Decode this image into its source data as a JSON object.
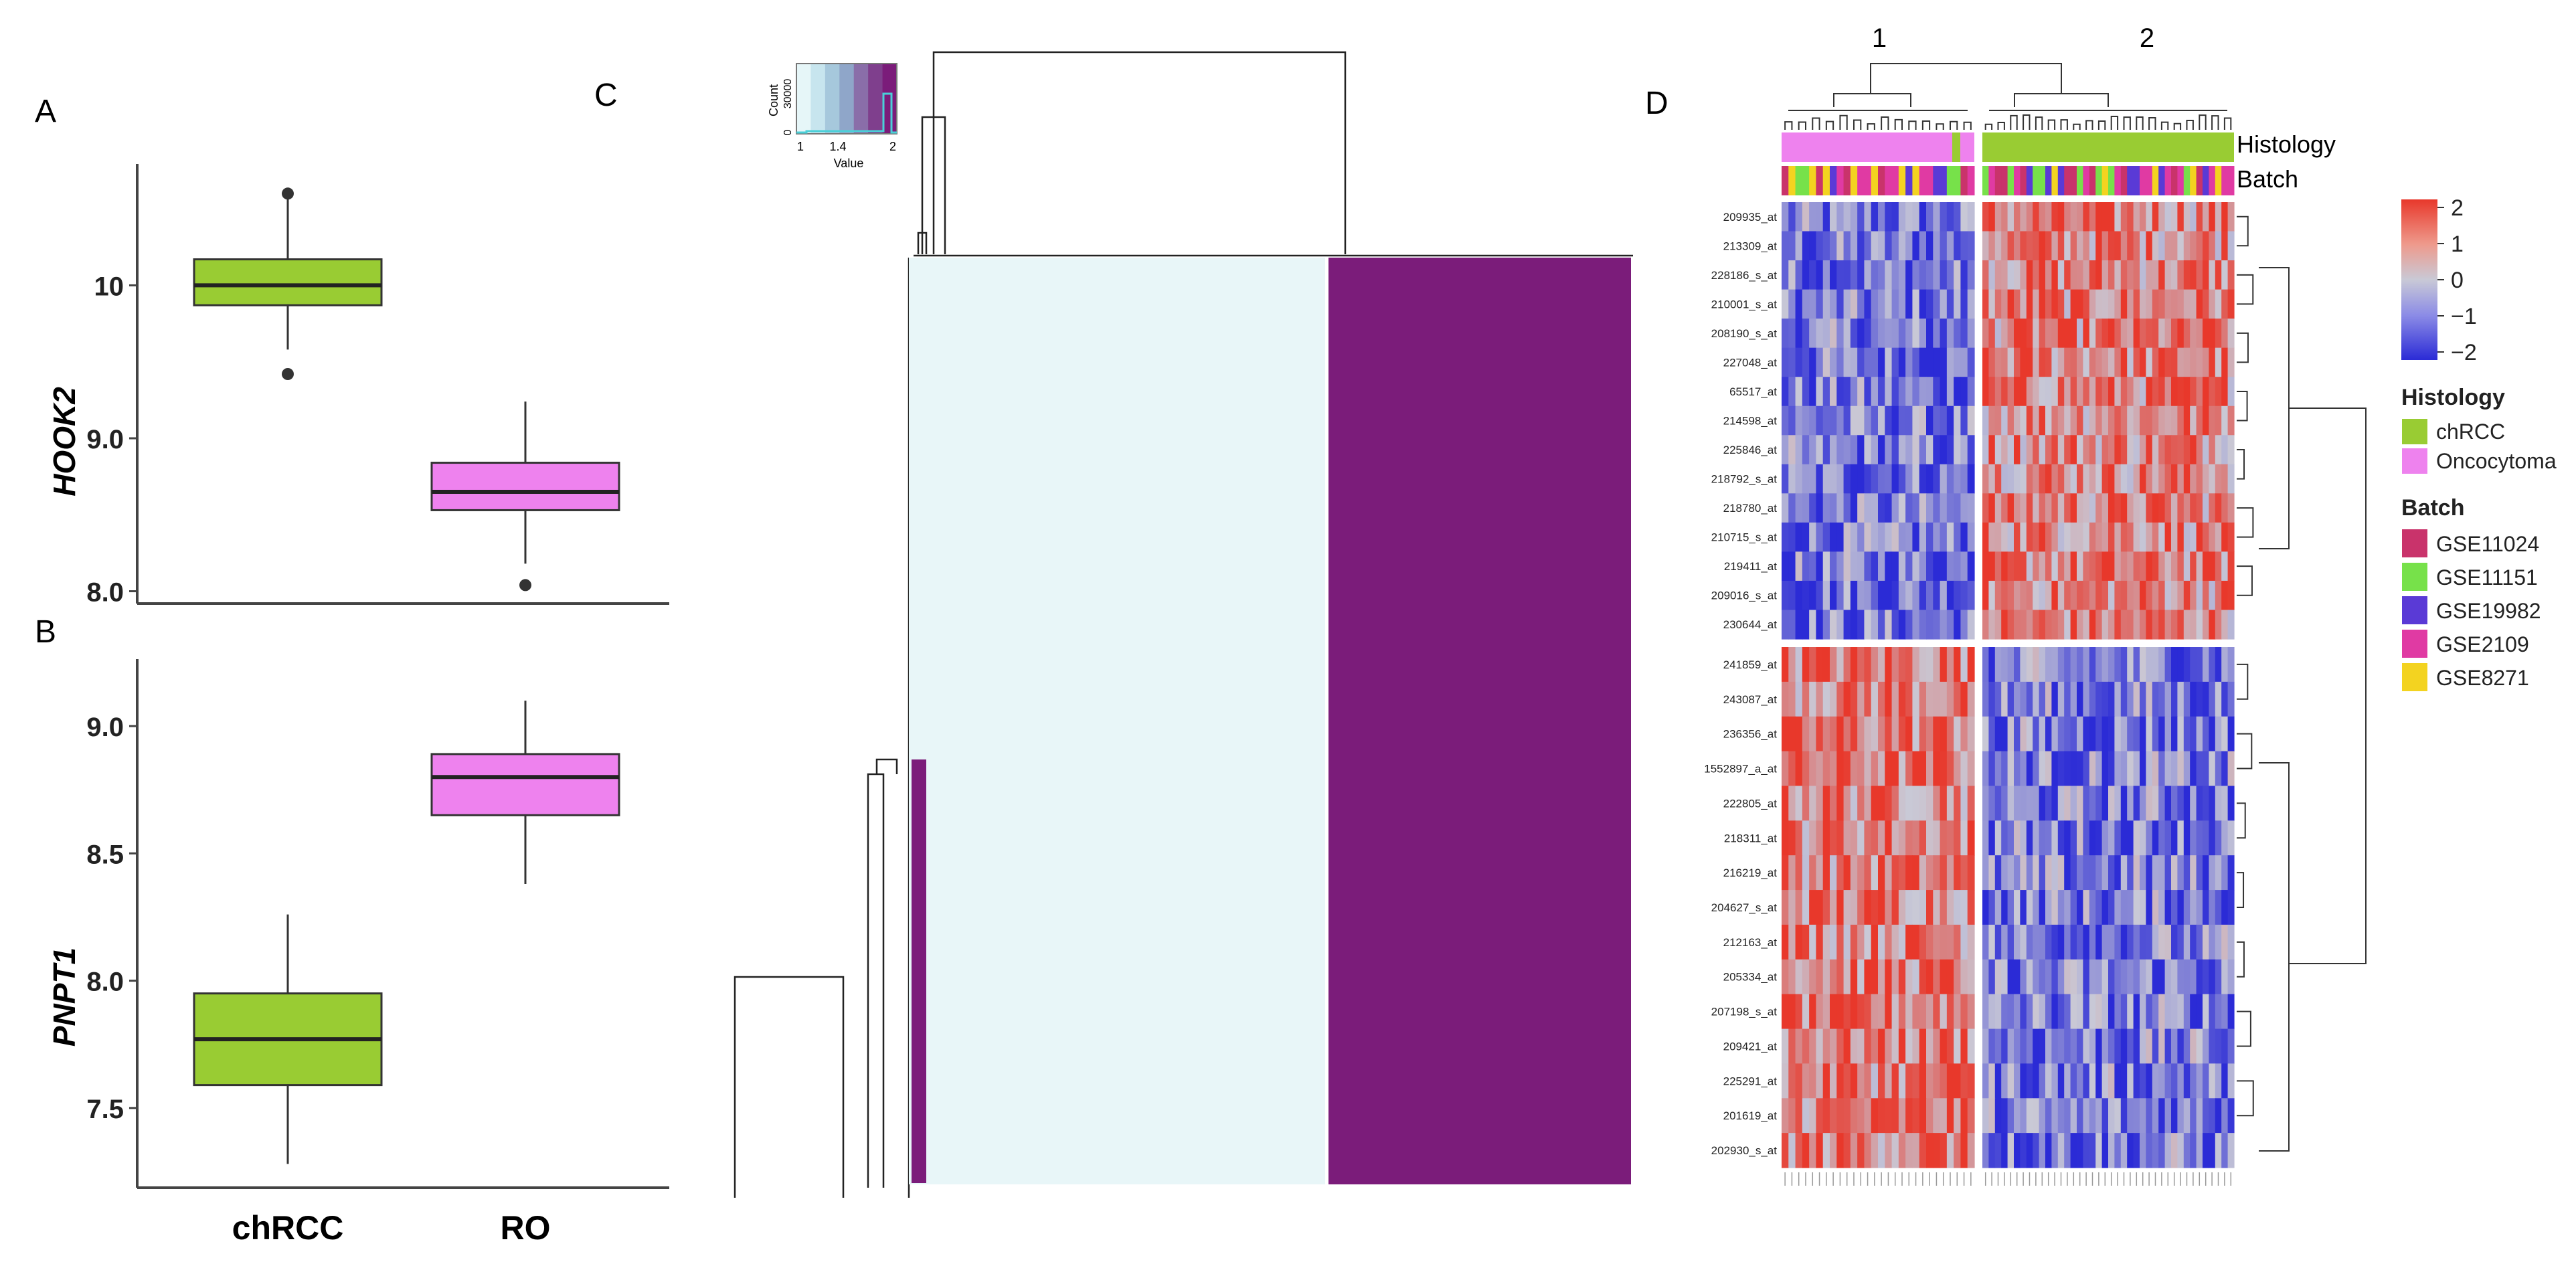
{
  "panels": {
    "A": "A",
    "B": "B",
    "C": "C",
    "D": "D"
  },
  "chart_data": [
    {
      "panel": "A",
      "type": "box",
      "ylabel": "HOOK2",
      "categories": [
        "chRCC",
        "RO"
      ],
      "ylim": [
        7.95,
        10.75
      ],
      "yticks": [
        "8.0",
        "9.0",
        "10"
      ],
      "boxes": [
        {
          "category": "chRCC",
          "min": 9.58,
          "q1": 9.87,
          "median": 10.0,
          "q3": 10.17,
          "max": 10.58,
          "outliers": [
            10.6,
            9.42
          ],
          "color": "#99cc33"
        },
        {
          "category": "RO",
          "min": 8.18,
          "q1": 8.53,
          "median": 8.65,
          "q3": 8.84,
          "max": 9.24,
          "outliers": [
            8.04
          ],
          "color": "#ee82ee"
        }
      ]
    },
    {
      "panel": "B",
      "type": "box",
      "ylabel": "PNPT1",
      "categories": [
        "chRCC",
        "RO"
      ],
      "ylim": [
        7.2,
        9.25
      ],
      "yticks": [
        "7.5",
        "8.0",
        "8.5",
        "9.0"
      ],
      "xticks": [
        "chRCC",
        "RO"
      ],
      "boxes": [
        {
          "category": "chRCC",
          "min": 7.28,
          "q1": 7.59,
          "median": 7.77,
          "q3": 7.95,
          "max": 8.26,
          "outliers": [],
          "color": "#99cc33"
        },
        {
          "category": "RO",
          "min": 8.38,
          "q1": 8.65,
          "median": 8.8,
          "q3": 8.89,
          "max": 9.1,
          "outliers": [],
          "color": "#ee82ee"
        }
      ]
    },
    {
      "panel": "C",
      "type": "heatmap",
      "key": {
        "ylabel": "Count",
        "ytick": "30000",
        "ytick_zero": "0",
        "xlabel": "Value",
        "xticks": [
          "1",
          "1.4",
          "2"
        ],
        "colors": [
          "#e6f6f8",
          "#c7e5ee",
          "#a6c8dc",
          "#8fa6c9",
          "#8a6ea9",
          "#7f3f8d",
          "#7b1c7a"
        ]
      },
      "blocks": [
        {
          "value": 1,
          "color": "#e8f6f8"
        },
        {
          "value": 2,
          "color": "#7b1c7a"
        }
      ]
    },
    {
      "panel": "D",
      "type": "heatmap",
      "cluster_labels": [
        "1",
        "2"
      ],
      "annotation_rows": [
        "Histology",
        "Batch"
      ],
      "genes_top": [
        "209935_at",
        "213309_at",
        "228186_s_at",
        "210001_s_at",
        "208190_s_at",
        "227048_at",
        "65517_at",
        "214598_at",
        "225846_at",
        "218792_s_at",
        "218780_at",
        "210715_s_at",
        "219411_at",
        "209016_s_at",
        "230644_at"
      ],
      "genes_bottom": [
        "241859_at",
        "243087_at",
        "236356_at",
        "1552897_a_at",
        "222805_at",
        "218311_at",
        "216219_at",
        "204627_s_at",
        "212163_at",
        "205334_at",
        "207198_s_at",
        "209421_at",
        "225291_at",
        "201619_at",
        "202930_s_at"
      ],
      "colorbar": {
        "ticks": [
          "2",
          "1",
          "0",
          "−1",
          "−2"
        ],
        "high": "#e8382b",
        "mid": "#c9c9d6",
        "low": "#2b2bd6"
      },
      "legend": {
        "histology_title": "Histology",
        "histology": [
          {
            "label": "chRCC",
            "color": "#99cc33"
          },
          {
            "label": "Oncocytoma",
            "color": "#ee82ee"
          }
        ],
        "batch_title": "Batch",
        "batch": [
          {
            "label": "GSE11024",
            "color": "#c9336b"
          },
          {
            "label": "GSE11151",
            "color": "#77e14a"
          },
          {
            "label": "GSE19982",
            "color": "#5a3ad6"
          },
          {
            "label": "GSE2109",
            "color": "#e03aa3"
          },
          {
            "label": "GSE8271",
            "color": "#f3d320"
          }
        ]
      }
    }
  ]
}
